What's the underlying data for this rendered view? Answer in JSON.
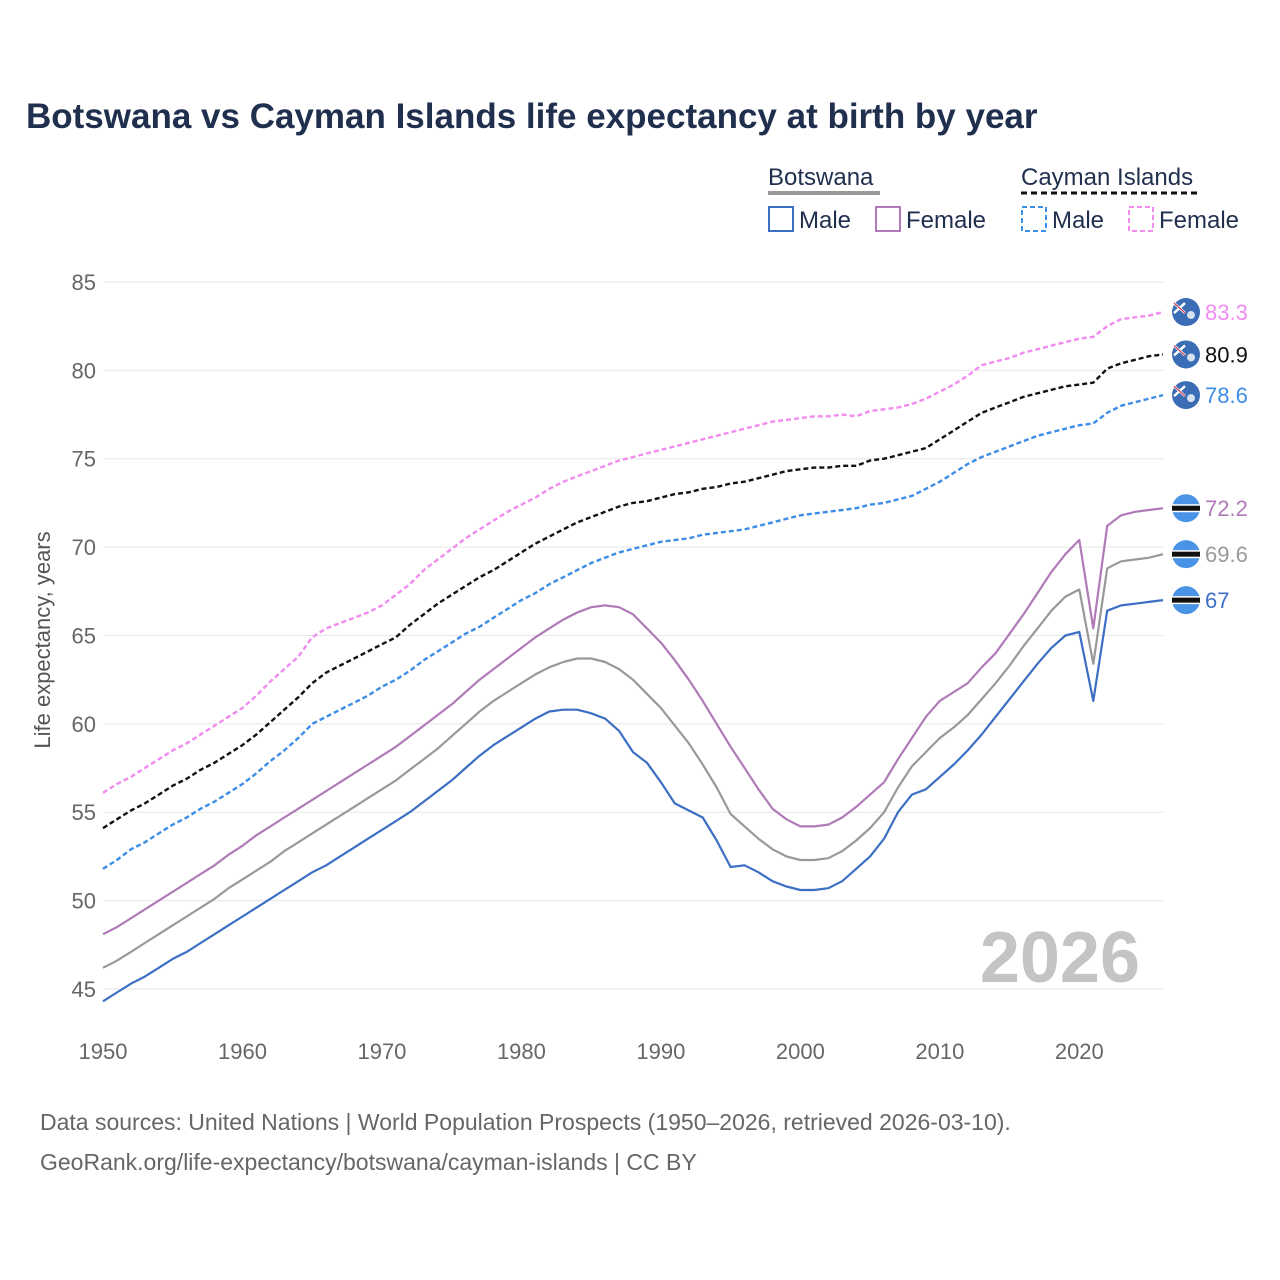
{
  "title": "Botswana vs Cayman Islands life expectancy at birth by year",
  "legend": {
    "groups": [
      {
        "name": "Botswana",
        "line_color": "#999999",
        "line_style": "solid"
      },
      {
        "name": "Cayman Islands",
        "line_color": "#111111",
        "line_style": "dashed"
      }
    ],
    "items": [
      {
        "label": "Male",
        "color": "#3c6fc4",
        "style": "solid"
      },
      {
        "label": "Female",
        "color": "#b07ab8",
        "style": "solid"
      },
      {
        "label": "Male",
        "color": "#3c8de8",
        "style": "dashed"
      },
      {
        "label": "Female",
        "color": "#f08cf0",
        "style": "dashed"
      }
    ]
  },
  "watermark": "2026",
  "source": {
    "line1": "Data sources: United Nations | World Population Prospects (1950–2026, retrieved 2026-03-10).",
    "line2": "GeoRank.org/life-expectancy/botswana/cayman-islands | CC BY"
  },
  "chart_data": {
    "type": "line",
    "title": "Botswana vs Cayman Islands life expectancy at birth by year",
    "xlabel": "",
    "ylabel": "Life expectancy, years",
    "xlim": [
      1950,
      2026
    ],
    "ylim": [
      42,
      85
    ],
    "x_ticks": [
      1950,
      1960,
      1970,
      1980,
      1990,
      2000,
      2010,
      2020
    ],
    "y_ticks": [
      45,
      50,
      55,
      60,
      65,
      70,
      75,
      80,
      85
    ],
    "grid": true,
    "x": [
      1950,
      1951,
      1952,
      1953,
      1954,
      1955,
      1956,
      1957,
      1958,
      1959,
      1960,
      1961,
      1962,
      1963,
      1964,
      1965,
      1966,
      1967,
      1968,
      1969,
      1970,
      1971,
      1972,
      1973,
      1974,
      1975,
      1976,
      1977,
      1978,
      1979,
      1980,
      1981,
      1982,
      1983,
      1984,
      1985,
      1986,
      1987,
      1988,
      1989,
      1990,
      1991,
      1992,
      1993,
      1994,
      1995,
      1996,
      1997,
      1998,
      1999,
      2000,
      2001,
      2002,
      2003,
      2004,
      2005,
      2006,
      2007,
      2008,
      2009,
      2010,
      2011,
      2012,
      2013,
      2014,
      2015,
      2016,
      2017,
      2018,
      2019,
      2020,
      2021,
      2022,
      2023,
      2024,
      2025,
      2026
    ],
    "series": [
      {
        "name": "Cayman Islands Female",
        "color": "#f08cf0",
        "dashed": true,
        "end_label": "83.3",
        "values": [
          56.1,
          56.6,
          57.0,
          57.5,
          58.0,
          58.5,
          58.9,
          59.4,
          59.9,
          60.4,
          60.9,
          61.6,
          62.4,
          63.1,
          63.8,
          64.9,
          65.4,
          65.7,
          66.0,
          66.3,
          66.7,
          67.3,
          67.9,
          68.7,
          69.3,
          69.9,
          70.5,
          71.0,
          71.5,
          72.0,
          72.4,
          72.8,
          73.3,
          73.7,
          74.0,
          74.3,
          74.6,
          74.9,
          75.1,
          75.3,
          75.5,
          75.7,
          75.9,
          76.1,
          76.3,
          76.5,
          76.7,
          76.9,
          77.1,
          77.2,
          77.3,
          77.4,
          77.4,
          77.5,
          77.4,
          77.7,
          77.8,
          77.9,
          78.1,
          78.4,
          78.8,
          79.2,
          79.7,
          80.3,
          80.5,
          80.7,
          81.0,
          81.2,
          81.4,
          81.6,
          81.8,
          81.9,
          82.5,
          82.9,
          83.0,
          83.1,
          83.3
        ]
      },
      {
        "name": "Cayman Islands Total",
        "color": "#111111",
        "dashed": true,
        "end_label": "80.9",
        "values": [
          54.1,
          54.6,
          55.1,
          55.5,
          56.0,
          56.5,
          56.9,
          57.4,
          57.8,
          58.3,
          58.8,
          59.4,
          60.1,
          60.8,
          61.5,
          62.3,
          62.9,
          63.3,
          63.7,
          64.1,
          64.5,
          64.9,
          65.6,
          66.2,
          66.8,
          67.3,
          67.8,
          68.3,
          68.7,
          69.2,
          69.7,
          70.2,
          70.6,
          71.0,
          71.4,
          71.7,
          72.0,
          72.3,
          72.5,
          72.6,
          72.8,
          73.0,
          73.1,
          73.3,
          73.4,
          73.6,
          73.7,
          73.9,
          74.1,
          74.3,
          74.4,
          74.5,
          74.5,
          74.6,
          74.6,
          74.9,
          75.0,
          75.2,
          75.4,
          75.6,
          76.1,
          76.6,
          77.1,
          77.6,
          77.9,
          78.2,
          78.5,
          78.7,
          78.9,
          79.1,
          79.2,
          79.3,
          80.1,
          80.4,
          80.6,
          80.8,
          80.9
        ]
      },
      {
        "name": "Cayman Islands Male",
        "color": "#3c8de8",
        "dashed": true,
        "end_label": "78.6",
        "values": [
          51.8,
          52.3,
          52.9,
          53.3,
          53.8,
          54.3,
          54.7,
          55.2,
          55.6,
          56.1,
          56.6,
          57.2,
          57.9,
          58.5,
          59.2,
          60.0,
          60.4,
          60.8,
          61.2,
          61.6,
          62.1,
          62.5,
          63.0,
          63.6,
          64.1,
          64.6,
          65.1,
          65.5,
          66.0,
          66.5,
          67.0,
          67.4,
          67.9,
          68.3,
          68.7,
          69.1,
          69.4,
          69.7,
          69.9,
          70.1,
          70.3,
          70.4,
          70.5,
          70.7,
          70.8,
          70.9,
          71.0,
          71.2,
          71.4,
          71.6,
          71.8,
          71.9,
          72.0,
          72.1,
          72.2,
          72.4,
          72.5,
          72.7,
          72.9,
          73.3,
          73.7,
          74.2,
          74.7,
          75.1,
          75.4,
          75.7,
          76.0,
          76.3,
          76.5,
          76.7,
          76.9,
          77.0,
          77.6,
          78.0,
          78.2,
          78.4,
          78.6
        ]
      },
      {
        "name": "Botswana Female",
        "color": "#b07ab8",
        "dashed": false,
        "end_label": "72.2",
        "values": [
          48.1,
          48.5,
          49.0,
          49.5,
          50.0,
          50.5,
          51.0,
          51.5,
          52.0,
          52.6,
          53.1,
          53.7,
          54.2,
          54.7,
          55.2,
          55.7,
          56.2,
          56.7,
          57.2,
          57.7,
          58.2,
          58.7,
          59.3,
          59.9,
          60.5,
          61.1,
          61.8,
          62.5,
          63.1,
          63.7,
          64.3,
          64.9,
          65.4,
          65.9,
          66.3,
          66.6,
          66.7,
          66.6,
          66.2,
          65.4,
          64.6,
          63.6,
          62.5,
          61.3,
          60.0,
          58.7,
          57.5,
          56.3,
          55.2,
          54.6,
          54.2,
          54.2,
          54.3,
          54.7,
          55.3,
          56.0,
          56.7,
          58.0,
          59.2,
          60.4,
          61.3,
          61.8,
          62.3,
          63.2,
          64.0,
          65.1,
          66.2,
          67.4,
          68.6,
          69.6,
          70.4,
          65.4,
          71.2,
          71.8,
          72.0,
          72.1,
          72.2
        ]
      },
      {
        "name": "Botswana Total",
        "color": "#999999",
        "dashed": false,
        "end_label": "69.6",
        "values": [
          46.2,
          46.6,
          47.1,
          47.6,
          48.1,
          48.6,
          49.1,
          49.6,
          50.1,
          50.7,
          51.2,
          51.7,
          52.2,
          52.8,
          53.3,
          53.8,
          54.3,
          54.8,
          55.3,
          55.8,
          56.3,
          56.8,
          57.4,
          58.0,
          58.6,
          59.3,
          60.0,
          60.7,
          61.3,
          61.8,
          62.3,
          62.8,
          63.2,
          63.5,
          63.7,
          63.7,
          63.5,
          63.1,
          62.5,
          61.7,
          60.9,
          59.9,
          58.9,
          57.7,
          56.4,
          54.9,
          54.2,
          53.5,
          52.9,
          52.5,
          52.3,
          52.3,
          52.4,
          52.8,
          53.4,
          54.1,
          55.0,
          56.4,
          57.6,
          58.4,
          59.2,
          59.8,
          60.5,
          61.4,
          62.3,
          63.3,
          64.4,
          65.4,
          66.4,
          67.2,
          67.6,
          63.4,
          68.8,
          69.2,
          69.3,
          69.4,
          69.6
        ]
      },
      {
        "name": "Botswana Male",
        "color": "#3c6fc4",
        "dashed": false,
        "end_label": "67",
        "values": [
          44.3,
          44.8,
          45.3,
          45.7,
          46.2,
          46.7,
          47.1,
          47.6,
          48.1,
          48.6,
          49.1,
          49.6,
          50.1,
          50.6,
          51.1,
          51.6,
          52.0,
          52.5,
          53.0,
          53.5,
          54.0,
          54.5,
          55.0,
          55.6,
          56.2,
          56.8,
          57.5,
          58.2,
          58.8,
          59.3,
          59.8,
          60.3,
          60.7,
          60.8,
          60.8,
          60.6,
          60.3,
          59.6,
          58.4,
          57.8,
          56.7,
          55.5,
          55.1,
          54.7,
          53.4,
          51.9,
          52.0,
          51.6,
          51.1,
          50.8,
          50.6,
          50.6,
          50.7,
          51.1,
          51.8,
          52.5,
          53.5,
          55.0,
          56.0,
          56.3,
          57.0,
          57.7,
          58.5,
          59.4,
          60.4,
          61.4,
          62.4,
          63.4,
          64.3,
          65.0,
          65.2,
          61.3,
          66.4,
          66.7,
          66.8,
          66.9,
          67.0
        ]
      }
    ]
  }
}
